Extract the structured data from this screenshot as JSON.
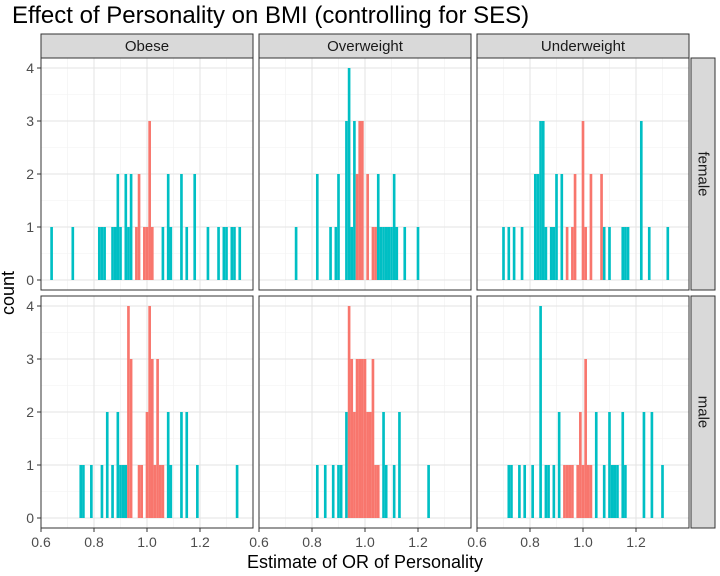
{
  "chart_data": {
    "type": "bar",
    "title": "Effect of Personality on BMI (controlling for SES)",
    "xlabel": "Estimate of OR of Personality",
    "ylabel": "count",
    "xlim": [
      0.6,
      1.4
    ],
    "ylim": [
      0,
      4
    ],
    "x_ticks": [
      "0.6",
      "0.8",
      "1.0",
      "1.2"
    ],
    "y_ticks": [
      "0",
      "1",
      "2",
      "3",
      "4"
    ],
    "grid": true,
    "legend": "none",
    "bin_width": 0.01,
    "colors": {
      "red": "#F8766D",
      "teal": "#00BFC4",
      "strip_bg": "#D9D9D9",
      "panel_border": "#333333"
    },
    "col_facets": [
      "Obese",
      "Overweight",
      "Underweight"
    ],
    "row_facets": [
      "female",
      "male"
    ],
    "panels": [
      {
        "col": "Obese",
        "row": "female",
        "bins": [
          {
            "x": 0.64,
            "count": 1,
            "color": "teal"
          },
          {
            "x": 0.72,
            "count": 1,
            "color": "teal"
          },
          {
            "x": 0.82,
            "count": 1,
            "color": "teal"
          },
          {
            "x": 0.83,
            "count": 1,
            "color": "teal"
          },
          {
            "x": 0.84,
            "count": 1,
            "color": "teal"
          },
          {
            "x": 0.87,
            "count": 1,
            "color": "teal"
          },
          {
            "x": 0.88,
            "count": 1,
            "color": "teal"
          },
          {
            "x": 0.89,
            "count": 2,
            "color": "teal"
          },
          {
            "x": 0.9,
            "count": 1,
            "color": "teal"
          },
          {
            "x": 0.92,
            "count": 2,
            "color": "teal"
          },
          {
            "x": 0.93,
            "count": 1,
            "color": "teal"
          },
          {
            "x": 0.94,
            "count": 2,
            "color": "teal"
          },
          {
            "x": 0.96,
            "count": 1,
            "color": "red"
          },
          {
            "x": 0.97,
            "count": 2,
            "color": "red"
          },
          {
            "x": 0.99,
            "count": 1,
            "color": "red"
          },
          {
            "x": 1.0,
            "count": 1,
            "color": "red"
          },
          {
            "x": 1.01,
            "count": 3,
            "color": "red"
          },
          {
            "x": 1.02,
            "count": 1,
            "color": "red"
          },
          {
            "x": 1.06,
            "count": 1,
            "color": "teal"
          },
          {
            "x": 1.08,
            "count": 2,
            "color": "teal"
          },
          {
            "x": 1.09,
            "count": 1,
            "color": "teal"
          },
          {
            "x": 1.13,
            "count": 2,
            "color": "teal"
          },
          {
            "x": 1.15,
            "count": 1,
            "color": "teal"
          },
          {
            "x": 1.18,
            "count": 2,
            "color": "teal"
          },
          {
            "x": 1.23,
            "count": 1,
            "color": "teal"
          },
          {
            "x": 1.27,
            "count": 1,
            "color": "teal"
          },
          {
            "x": 1.29,
            "count": 1,
            "color": "teal"
          },
          {
            "x": 1.3,
            "count": 1,
            "color": "teal"
          },
          {
            "x": 1.32,
            "count": 1,
            "color": "teal"
          },
          {
            "x": 1.33,
            "count": 1,
            "color": "teal"
          },
          {
            "x": 1.35,
            "count": 1,
            "color": "teal"
          }
        ]
      },
      {
        "col": "Overweight",
        "row": "female",
        "bins": [
          {
            "x": 0.74,
            "count": 1,
            "color": "teal"
          },
          {
            "x": 0.82,
            "count": 2,
            "color": "teal"
          },
          {
            "x": 0.87,
            "count": 1,
            "color": "teal"
          },
          {
            "x": 0.89,
            "count": 1,
            "color": "teal"
          },
          {
            "x": 0.9,
            "count": 2,
            "color": "teal"
          },
          {
            "x": 0.93,
            "count": 3,
            "color": "teal"
          },
          {
            "x": 0.94,
            "count": 4,
            "color": "teal"
          },
          {
            "x": 0.95,
            "count": 1,
            "color": "teal"
          },
          {
            "x": 0.96,
            "count": 3,
            "color": "teal"
          },
          {
            "x": 0.97,
            "count": 2,
            "color": "red"
          },
          {
            "x": 0.98,
            "count": 3,
            "color": "red"
          },
          {
            "x": 0.99,
            "count": 3,
            "color": "red"
          },
          {
            "x": 1.01,
            "count": 2,
            "color": "red"
          },
          {
            "x": 1.03,
            "count": 1,
            "color": "red"
          },
          {
            "x": 1.04,
            "count": 1,
            "color": "red"
          },
          {
            "x": 1.05,
            "count": 2,
            "color": "teal"
          },
          {
            "x": 1.06,
            "count": 1,
            "color": "teal"
          },
          {
            "x": 1.07,
            "count": 1,
            "color": "teal"
          },
          {
            "x": 1.08,
            "count": 1,
            "color": "teal"
          },
          {
            "x": 1.09,
            "count": 1,
            "color": "teal"
          },
          {
            "x": 1.1,
            "count": 1,
            "color": "teal"
          },
          {
            "x": 1.11,
            "count": 2,
            "color": "teal"
          },
          {
            "x": 1.12,
            "count": 1,
            "color": "teal"
          },
          {
            "x": 1.15,
            "count": 1,
            "color": "teal"
          },
          {
            "x": 1.2,
            "count": 1,
            "color": "teal"
          }
        ]
      },
      {
        "col": "Underweight",
        "row": "female",
        "bins": [
          {
            "x": 0.7,
            "count": 1,
            "color": "teal"
          },
          {
            "x": 0.72,
            "count": 1,
            "color": "teal"
          },
          {
            "x": 0.74,
            "count": 1,
            "color": "teal"
          },
          {
            "x": 0.77,
            "count": 1,
            "color": "teal"
          },
          {
            "x": 0.82,
            "count": 2,
            "color": "teal"
          },
          {
            "x": 0.83,
            "count": 2,
            "color": "teal"
          },
          {
            "x": 0.84,
            "count": 3,
            "color": "teal"
          },
          {
            "x": 0.85,
            "count": 3,
            "color": "teal"
          },
          {
            "x": 0.86,
            "count": 1,
            "color": "teal"
          },
          {
            "x": 0.88,
            "count": 1,
            "color": "teal"
          },
          {
            "x": 0.89,
            "count": 1,
            "color": "teal"
          },
          {
            "x": 0.9,
            "count": 2,
            "color": "teal"
          },
          {
            "x": 0.92,
            "count": 2,
            "color": "teal"
          },
          {
            "x": 0.94,
            "count": 1,
            "color": "red"
          },
          {
            "x": 0.96,
            "count": 1,
            "color": "red"
          },
          {
            "x": 0.97,
            "count": 2,
            "color": "red"
          },
          {
            "x": 1.0,
            "count": 3,
            "color": "red"
          },
          {
            "x": 1.01,
            "count": 1,
            "color": "red"
          },
          {
            "x": 1.03,
            "count": 2,
            "color": "red"
          },
          {
            "x": 1.07,
            "count": 2,
            "color": "red"
          },
          {
            "x": 1.08,
            "count": 1,
            "color": "teal"
          },
          {
            "x": 1.1,
            "count": 1,
            "color": "teal"
          },
          {
            "x": 1.15,
            "count": 1,
            "color": "teal"
          },
          {
            "x": 1.16,
            "count": 1,
            "color": "teal"
          },
          {
            "x": 1.17,
            "count": 1,
            "color": "teal"
          },
          {
            "x": 1.22,
            "count": 3,
            "color": "teal"
          },
          {
            "x": 1.25,
            "count": 1,
            "color": "teal"
          },
          {
            "x": 1.32,
            "count": 1,
            "color": "teal"
          }
        ]
      },
      {
        "col": "Obese",
        "row": "male",
        "bins": [
          {
            "x": 0.75,
            "count": 1,
            "color": "teal"
          },
          {
            "x": 0.76,
            "count": 1,
            "color": "teal"
          },
          {
            "x": 0.79,
            "count": 1,
            "color": "teal"
          },
          {
            "x": 0.83,
            "count": 1,
            "color": "teal"
          },
          {
            "x": 0.85,
            "count": 2,
            "color": "teal"
          },
          {
            "x": 0.87,
            "count": 1,
            "color": "teal"
          },
          {
            "x": 0.89,
            "count": 2,
            "color": "teal"
          },
          {
            "x": 0.9,
            "count": 1,
            "color": "teal"
          },
          {
            "x": 0.91,
            "count": 1,
            "color": "teal"
          },
          {
            "x": 0.92,
            "count": 1,
            "color": "teal"
          },
          {
            "x": 0.93,
            "count": 4,
            "color": "red"
          },
          {
            "x": 0.94,
            "count": 3,
            "color": "red"
          },
          {
            "x": 0.97,
            "count": 1,
            "color": "red"
          },
          {
            "x": 0.98,
            "count": 1,
            "color": "red"
          },
          {
            "x": 1.0,
            "count": 2,
            "color": "red"
          },
          {
            "x": 1.01,
            "count": 4,
            "color": "red"
          },
          {
            "x": 1.02,
            "count": 3,
            "color": "red"
          },
          {
            "x": 1.03,
            "count": 1,
            "color": "red"
          },
          {
            "x": 1.04,
            "count": 3,
            "color": "red"
          },
          {
            "x": 1.05,
            "count": 1,
            "color": "red"
          },
          {
            "x": 1.06,
            "count": 1,
            "color": "red"
          },
          {
            "x": 1.08,
            "count": 2,
            "color": "teal"
          },
          {
            "x": 1.09,
            "count": 1,
            "color": "teal"
          },
          {
            "x": 1.13,
            "count": 2,
            "color": "teal"
          },
          {
            "x": 1.15,
            "count": 2,
            "color": "teal"
          },
          {
            "x": 1.19,
            "count": 1,
            "color": "teal"
          },
          {
            "x": 1.34,
            "count": 1,
            "color": "teal"
          }
        ]
      },
      {
        "col": "Overweight",
        "row": "male",
        "bins": [
          {
            "x": 0.82,
            "count": 1,
            "color": "teal"
          },
          {
            "x": 0.85,
            "count": 1,
            "color": "teal"
          },
          {
            "x": 0.88,
            "count": 1,
            "color": "teal"
          },
          {
            "x": 0.9,
            "count": 1,
            "color": "teal"
          },
          {
            "x": 0.91,
            "count": 1,
            "color": "teal"
          },
          {
            "x": 0.93,
            "count": 2,
            "color": "teal"
          },
          {
            "x": 0.94,
            "count": 4,
            "color": "red"
          },
          {
            "x": 0.95,
            "count": 3,
            "color": "red"
          },
          {
            "x": 0.96,
            "count": 2,
            "color": "red"
          },
          {
            "x": 0.97,
            "count": 3,
            "color": "red"
          },
          {
            "x": 0.98,
            "count": 3,
            "color": "red"
          },
          {
            "x": 0.99,
            "count": 3,
            "color": "red"
          },
          {
            "x": 1.0,
            "count": 3,
            "color": "red"
          },
          {
            "x": 1.01,
            "count": 2,
            "color": "red"
          },
          {
            "x": 1.02,
            "count": 2,
            "color": "red"
          },
          {
            "x": 1.03,
            "count": 3,
            "color": "red"
          },
          {
            "x": 1.04,
            "count": 1,
            "color": "red"
          },
          {
            "x": 1.05,
            "count": 1,
            "color": "red"
          },
          {
            "x": 1.07,
            "count": 2,
            "color": "teal"
          },
          {
            "x": 1.08,
            "count": 1,
            "color": "teal"
          },
          {
            "x": 1.11,
            "count": 1,
            "color": "teal"
          },
          {
            "x": 1.13,
            "count": 2,
            "color": "teal"
          },
          {
            "x": 1.24,
            "count": 1,
            "color": "teal"
          }
        ]
      },
      {
        "col": "Underweight",
        "row": "male",
        "bins": [
          {
            "x": 0.72,
            "count": 1,
            "color": "teal"
          },
          {
            "x": 0.73,
            "count": 1,
            "color": "teal"
          },
          {
            "x": 0.76,
            "count": 1,
            "color": "teal"
          },
          {
            "x": 0.78,
            "count": 1,
            "color": "teal"
          },
          {
            "x": 0.81,
            "count": 1,
            "color": "teal"
          },
          {
            "x": 0.84,
            "count": 4,
            "color": "teal"
          },
          {
            "x": 0.86,
            "count": 1,
            "color": "teal"
          },
          {
            "x": 0.87,
            "count": 1,
            "color": "teal"
          },
          {
            "x": 0.89,
            "count": 1,
            "color": "teal"
          },
          {
            "x": 0.91,
            "count": 2,
            "color": "teal"
          },
          {
            "x": 0.93,
            "count": 1,
            "color": "red"
          },
          {
            "x": 0.94,
            "count": 1,
            "color": "red"
          },
          {
            "x": 0.95,
            "count": 1,
            "color": "red"
          },
          {
            "x": 0.96,
            "count": 1,
            "color": "red"
          },
          {
            "x": 0.98,
            "count": 1,
            "color": "red"
          },
          {
            "x": 0.99,
            "count": 2,
            "color": "red"
          },
          {
            "x": 1.0,
            "count": 1,
            "color": "red"
          },
          {
            "x": 1.01,
            "count": 3,
            "color": "red"
          },
          {
            "x": 1.02,
            "count": 1,
            "color": "red"
          },
          {
            "x": 1.03,
            "count": 1,
            "color": "red"
          },
          {
            "x": 1.05,
            "count": 2,
            "color": "teal"
          },
          {
            "x": 1.08,
            "count": 1,
            "color": "teal"
          },
          {
            "x": 1.1,
            "count": 2,
            "color": "teal"
          },
          {
            "x": 1.11,
            "count": 1,
            "color": "teal"
          },
          {
            "x": 1.12,
            "count": 1,
            "color": "teal"
          },
          {
            "x": 1.13,
            "count": 1,
            "color": "teal"
          },
          {
            "x": 1.15,
            "count": 2,
            "color": "teal"
          },
          {
            "x": 1.16,
            "count": 1,
            "color": "teal"
          },
          {
            "x": 1.23,
            "count": 2,
            "color": "teal"
          },
          {
            "x": 1.26,
            "count": 2,
            "color": "teal"
          },
          {
            "x": 1.3,
            "count": 1,
            "color": "teal"
          }
        ]
      }
    ]
  }
}
